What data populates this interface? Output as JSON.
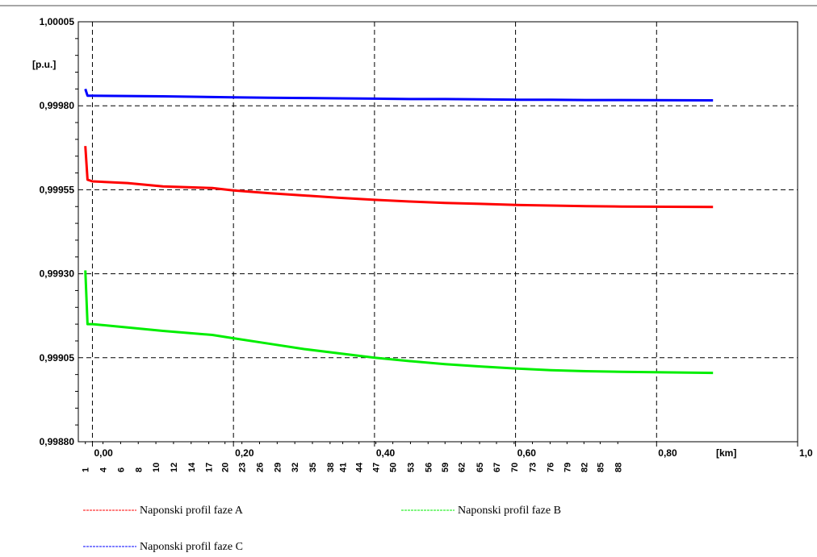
{
  "chart_data": {
    "type": "line",
    "y_unit": "[p.u.]",
    "x_unit": "[km]",
    "ylim": [
      0.9988,
      1.00005
    ],
    "xlim": [
      -0.02,
      1.0
    ],
    "y_ticks": [
      "1,00005",
      "0,99980",
      "0,99955",
      "0,99930",
      "0,99905",
      "0,99880"
    ],
    "y_tick_values": [
      1.00005,
      0.9998,
      0.99955,
      0.9993,
      0.99905,
      0.9988
    ],
    "x_ticks": [
      "0,00",
      "0,20",
      "0,40",
      "0,60",
      "0,80",
      "1,0"
    ],
    "x_tick_values": [
      0.0,
      0.2,
      0.4,
      0.6,
      0.8,
      1.0
    ],
    "node_labels": [
      "1",
      "4",
      "6",
      "8",
      "10",
      "12",
      "14",
      "17",
      "20",
      "23",
      "26",
      "29",
      "32",
      "35",
      "38",
      "41",
      "44",
      "47",
      "50",
      "53",
      "56",
      "59",
      "62",
      "65",
      "67",
      "70",
      "73",
      "76",
      "79",
      "82",
      "85",
      "88"
    ],
    "node_positions_km": [
      -0.01,
      0.015,
      0.04,
      0.065,
      0.09,
      0.115,
      0.14,
      0.165,
      0.188,
      0.212,
      0.237,
      0.262,
      0.287,
      0.312,
      0.337,
      0.355,
      0.378,
      0.402,
      0.426,
      0.451,
      0.476,
      0.5,
      0.523,
      0.549,
      0.573,
      0.598,
      0.624,
      0.649,
      0.673,
      0.697,
      0.72,
      0.745
    ],
    "grid": true,
    "legend_position": "bottom",
    "series": [
      {
        "name": "Naponski profil faze A",
        "color": "#ff0000",
        "x": [
          -0.01,
          -0.007,
          0.0,
          0.05,
          0.1,
          0.17,
          0.2,
          0.25,
          0.3,
          0.35,
          0.4,
          0.45,
          0.5,
          0.55,
          0.6,
          0.65,
          0.7,
          0.75,
          0.88
        ],
        "y": [
          0.99968,
          0.99958,
          0.999575,
          0.99957,
          0.99956,
          0.999555,
          0.999548,
          0.99954,
          0.999533,
          0.999526,
          0.99952,
          0.999515,
          0.999511,
          0.999508,
          0.999505,
          0.999503,
          0.999501,
          0.9995,
          0.999499
        ]
      },
      {
        "name": "Naponski profil faze B",
        "color": "#00ee00",
        "x": [
          -0.01,
          -0.007,
          0.0,
          0.05,
          0.1,
          0.17,
          0.2,
          0.25,
          0.3,
          0.35,
          0.4,
          0.45,
          0.5,
          0.55,
          0.6,
          0.65,
          0.7,
          0.75,
          0.88
        ],
        "y": [
          0.99931,
          0.99915,
          0.99915,
          0.99914,
          0.99913,
          0.999118,
          0.999108,
          0.999092,
          0.999076,
          0.999063,
          0.99905,
          0.99904,
          0.999031,
          0.999024,
          0.999018,
          0.999013,
          0.99901,
          0.999008,
          0.999005
        ]
      },
      {
        "name": "Naponski profil faze C",
        "color": "#0000ff",
        "x": [
          -0.01,
          -0.007,
          0.0,
          0.05,
          0.1,
          0.17,
          0.2,
          0.25,
          0.3,
          0.35,
          0.4,
          0.45,
          0.5,
          0.55,
          0.6,
          0.65,
          0.7,
          0.75,
          0.88
        ],
        "y": [
          0.99985,
          0.99983,
          0.99983,
          0.999829,
          0.999828,
          0.999826,
          0.999825,
          0.999824,
          0.999823,
          0.999822,
          0.999821,
          0.99982,
          0.99982,
          0.999819,
          0.999818,
          0.999818,
          0.999817,
          0.999817,
          0.999816
        ]
      }
    ]
  }
}
